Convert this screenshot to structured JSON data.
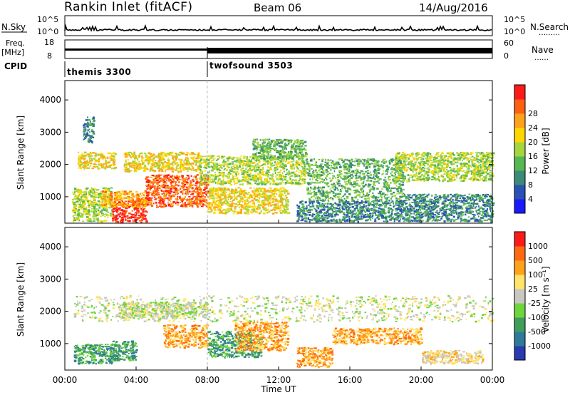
{
  "header": {
    "station": "Rankin Inlet (fitACF)",
    "beam": "Beam 06",
    "date": "14/Aug/2016"
  },
  "strips": {
    "nsky": {
      "label": "N.Sky",
      "right_label": "N.Search",
      "left_ticks": [
        "10^5",
        "10^0"
      ],
      "right_ticks": [
        "10^5",
        "10^0"
      ],
      "right_dots": "………"
    },
    "freq": {
      "label": "Freq.",
      "unit": "[MHz]",
      "right_label": "Nave",
      "left_ticks": [
        "18",
        "8"
      ],
      "right_ticks": [
        "60",
        "0"
      ],
      "right_dots": "……"
    },
    "cpid": {
      "label": "CPID",
      "modes": [
        {
          "name": "themis 3300",
          "start_hour": 0
        },
        {
          "name": "twofsound 3503",
          "start_hour": 8
        }
      ]
    }
  },
  "chart_data": [
    {
      "type": "heatmap",
      "name": "power",
      "title": "",
      "ylabel": "Slant Range [km]",
      "xlabel": "",
      "xlim_hours": [
        0,
        24
      ],
      "ylim": [
        180,
        4600
      ],
      "y_ticks": [
        1000,
        2000,
        3000,
        4000
      ],
      "x_ticks": [
        "00:00",
        "04:00",
        "08:00",
        "12:00",
        "16:00",
        "20:00",
        "00:00"
      ],
      "colorbar": {
        "label": "Power [dB]",
        "ticks": [
          "4",
          "8",
          "12",
          "16",
          "20",
          "24",
          "28"
        ],
        "colors": [
          "#1a1aff",
          "#2a52b4",
          "#3c8a78",
          "#56b852",
          "#a6d63e",
          "#ffd700",
          "#ffa21a",
          "#ff6010",
          "#ff1a1a"
        ]
      },
      "regions": [
        {
          "t": [
            0.7,
            2.8
          ],
          "r": [
            1900,
            2400
          ],
          "level": 5
        },
        {
          "t": [
            0.4,
            2.6
          ],
          "r": [
            250,
            1300
          ],
          "level": 4
        },
        {
          "t": [
            2.6,
            4.6
          ],
          "r": [
            220,
            900
          ],
          "level": 8
        },
        {
          "t": [
            2.0,
            4.5
          ],
          "r": [
            700,
            1200
          ],
          "level": 6
        },
        {
          "t": [
            4.5,
            8.0
          ],
          "r": [
            700,
            1700
          ],
          "level": 7
        },
        {
          "t": [
            3.3,
            7.5
          ],
          "r": [
            1800,
            2400
          ],
          "level": 5
        },
        {
          "t": [
            8.0,
            12.5
          ],
          "r": [
            500,
            1300
          ],
          "level": 5
        },
        {
          "t": [
            7.5,
            13.5
          ],
          "r": [
            1400,
            2300
          ],
          "level": 4
        },
        {
          "t": [
            10.5,
            13.5
          ],
          "r": [
            2200,
            2800
          ],
          "level": 3
        },
        {
          "t": [
            13.5,
            19.0
          ],
          "r": [
            900,
            2200
          ],
          "level": 3
        },
        {
          "t": [
            13.0,
            19.0
          ],
          "r": [
            250,
            900
          ],
          "level": 2
        },
        {
          "t": [
            18.5,
            24.0
          ],
          "r": [
            1500,
            2400
          ],
          "level": 4
        },
        {
          "t": [
            19.0,
            24.0
          ],
          "r": [
            250,
            1100
          ],
          "level": 2
        },
        {
          "t": [
            1.0,
            1.6
          ],
          "r": [
            2700,
            3500
          ],
          "level": 2
        }
      ]
    },
    {
      "type": "heatmap",
      "name": "velocity",
      "title": "",
      "ylabel": "Slant Range [km]",
      "xlabel": "Time UT",
      "xlim_hours": [
        0,
        24
      ],
      "ylim": [
        180,
        4600
      ],
      "y_ticks": [
        1000,
        2000,
        3000,
        4000
      ],
      "x_ticks": [
        "00:00",
        "04:00",
        "08:00",
        "12:00",
        "16:00",
        "20:00",
        "00:00"
      ],
      "colorbar": {
        "label": "Velocity [m s⁻¹]",
        "ticks": [
          "1000",
          "500",
          "100",
          "25",
          "-25",
          "-100",
          "-500",
          "-1000"
        ],
        "colors": [
          "#2a3ab0",
          "#2f7a9a",
          "#3e9e5a",
          "#6ed63a",
          "#c8c8c0",
          "#ffe36a",
          "#ffa21a",
          "#ff6a10",
          "#ff1a1a"
        ]
      },
      "regions": [
        {
          "t": [
            0.5,
            2.8
          ],
          "r": [
            400,
            1000
          ],
          "level": 2
        },
        {
          "t": [
            2.5,
            4.0
          ],
          "r": [
            500,
            1100
          ],
          "level": 2
        },
        {
          "t": [
            5.5,
            8.0
          ],
          "r": [
            900,
            1600
          ],
          "level": 6
        },
        {
          "t": [
            8.0,
            11.0
          ],
          "r": [
            600,
            1400
          ],
          "level": 2
        },
        {
          "t": [
            9.5,
            12.5
          ],
          "r": [
            800,
            1700
          ],
          "level": 6
        },
        {
          "t": [
            13.0,
            15.0
          ],
          "r": [
            300,
            900
          ],
          "level": 6
        },
        {
          "t": [
            20.0,
            23.5
          ],
          "r": [
            400,
            800
          ],
          "level": 5
        },
        {
          "t": [
            0.5,
            24.0
          ],
          "r": [
            1700,
            2500
          ],
          "level": 4
        },
        {
          "t": [
            3.0,
            8.0
          ],
          "r": [
            1800,
            2300
          ],
          "level": 4
        },
        {
          "t": [
            15.0,
            20.0
          ],
          "r": [
            1000,
            1500
          ],
          "level": 6
        }
      ]
    }
  ]
}
